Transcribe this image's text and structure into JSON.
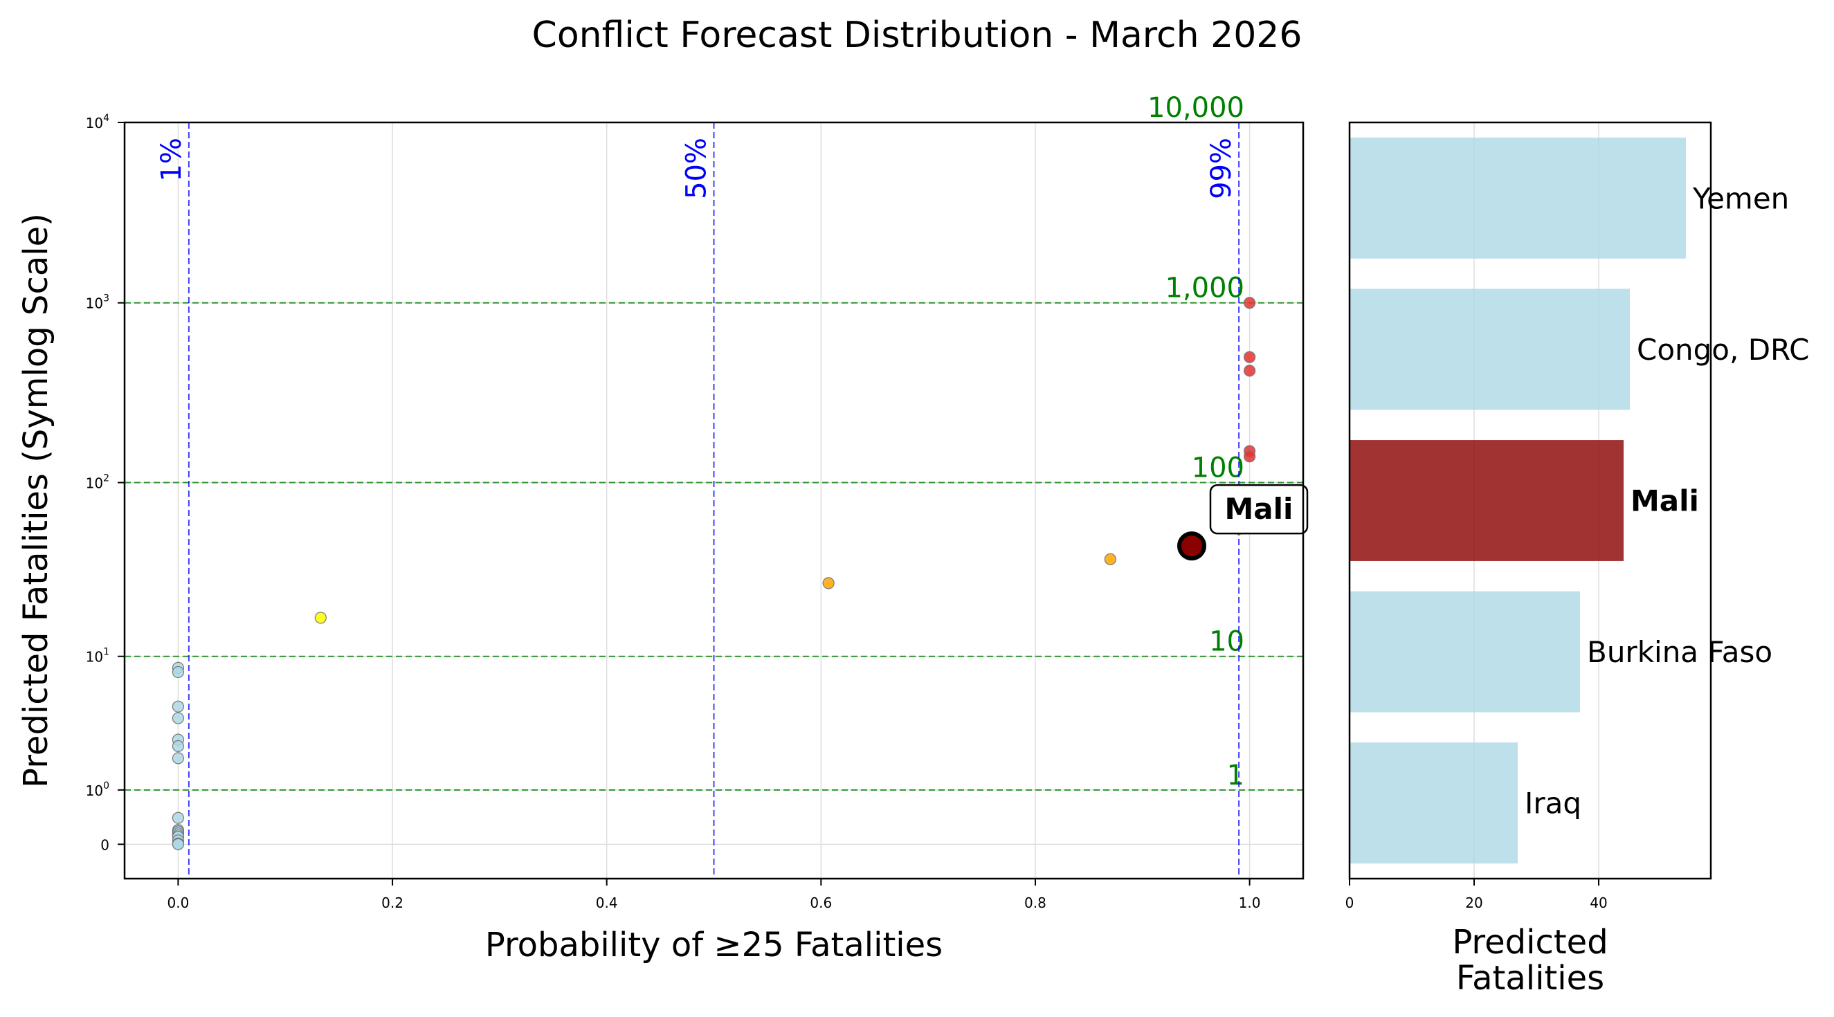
{
  "figure_title": "Conflict Forecast Distribution - March 2026",
  "colors": {
    "probability_line": "#0000ff",
    "fatality_line": "#008000",
    "no_risk_point": "#add8e6",
    "low_risk_point": "#ffff00",
    "medium_risk_point": "#ffa500",
    "high_risk_point": "#e53333",
    "highlight_point": "#8b0000",
    "bar_default": "#add8e6",
    "bar_highlight": "#8b0000",
    "grid": "#dddddd"
  },
  "chart_data": [
    {
      "type": "scatter",
      "title": "",
      "xlabel": "Probability of ≥25 Fatalities",
      "ylabel": "Predicted Fatalities (Symlog Scale)",
      "xlim": [
        -0.05,
        1.05
      ],
      "ylim": [
        -0.55,
        10000
      ],
      "yscale": "symlog",
      "grid": true,
      "x_ticks": [
        {
          "value": 0.0,
          "label": "0.0"
        },
        {
          "value": 0.2,
          "label": "0.2"
        },
        {
          "value": 0.4,
          "label": "0.4"
        },
        {
          "value": 0.6,
          "label": "0.6"
        },
        {
          "value": 0.8,
          "label": "0.8"
        },
        {
          "value": 1.0,
          "label": "1.0"
        }
      ],
      "y_ticks": [
        {
          "value": 0,
          "base": "0",
          "exp": ""
        },
        {
          "value": 1,
          "base": "10",
          "exp": "0"
        },
        {
          "value": 10,
          "base": "10",
          "exp": "1"
        },
        {
          "value": 100,
          "base": "10",
          "exp": "2"
        },
        {
          "value": 1000,
          "base": "10",
          "exp": "3"
        },
        {
          "value": 10000,
          "base": "10",
          "exp": "4"
        }
      ],
      "probability_lines": [
        {
          "x": 0.01,
          "label": "1%"
        },
        {
          "x": 0.5,
          "label": "50%"
        },
        {
          "x": 0.99,
          "label": "99%"
        }
      ],
      "fatality_lines": [
        {
          "y": 1,
          "label": "1"
        },
        {
          "y": 10,
          "label": "10"
        },
        {
          "y": 100,
          "label": "100"
        },
        {
          "y": 1000,
          "label": "1,000"
        },
        {
          "y": 10000,
          "label": "10,000"
        }
      ],
      "points": [
        {
          "x": 0.0,
          "y": 8.5,
          "risk": "no_risk"
        },
        {
          "x": 0.0,
          "y": 8.0,
          "risk": "no_risk"
        },
        {
          "x": 0.0,
          "y": 4.8,
          "risk": "no_risk"
        },
        {
          "x": 0.0,
          "y": 4.0,
          "risk": "no_risk"
        },
        {
          "x": 0.0,
          "y": 2.8,
          "risk": "no_risk"
        },
        {
          "x": 0.0,
          "y": 2.5,
          "risk": "no_risk"
        },
        {
          "x": 0.0,
          "y": 2.0,
          "risk": "no_risk"
        },
        {
          "x": 0.0,
          "y": 0.4,
          "risk": "no_risk"
        },
        {
          "x": 0.0,
          "y": 0.2,
          "risk": "no_risk"
        },
        {
          "x": 0.0,
          "y": 0.18,
          "risk": "no_risk"
        },
        {
          "x": 0.0,
          "y": 0.15,
          "risk": "no_risk"
        },
        {
          "x": 0.0,
          "y": 0.12,
          "risk": "no_risk"
        },
        {
          "x": 0.0,
          "y": 0.1,
          "risk": "no_risk"
        },
        {
          "x": 0.0,
          "y": 0.05,
          "risk": "no_risk"
        },
        {
          "x": 0.0,
          "y": 0.01,
          "risk": "no_risk"
        },
        {
          "x": 0.0,
          "y": 0.0,
          "risk": "no_risk"
        },
        {
          "x": 0.133,
          "y": 17,
          "risk": "low_risk"
        },
        {
          "x": 0.607,
          "y": 27,
          "risk": "medium_risk"
        },
        {
          "x": 0.87,
          "y": 37,
          "risk": "medium_risk"
        },
        {
          "x": 0.99,
          "y": 55,
          "risk": "medium_risk"
        },
        {
          "x": 1.0,
          "y": 1000,
          "risk": "high_risk"
        },
        {
          "x": 1.0,
          "y": 500,
          "risk": "high_risk"
        },
        {
          "x": 1.0,
          "y": 420,
          "risk": "high_risk"
        },
        {
          "x": 1.0,
          "y": 150,
          "risk": "high_risk"
        },
        {
          "x": 1.0,
          "y": 140,
          "risk": "high_risk"
        }
      ],
      "highlight": {
        "x": 0.946,
        "y": 44,
        "label": "Mali"
      }
    },
    {
      "type": "bar",
      "orientation": "horizontal",
      "xlabel": "Predicted\nFatalities",
      "xlim": [
        0,
        58
      ],
      "x_ticks": [
        {
          "value": 0,
          "label": "0"
        },
        {
          "value": 20,
          "label": "20"
        },
        {
          "value": 40,
          "label": "40"
        }
      ],
      "grid": true,
      "categories": [
        "Yemen",
        "Congo, DRC",
        "Mali",
        "Burkina Faso",
        "Iraq"
      ],
      "values": [
        54,
        45,
        44,
        37,
        27
      ],
      "highlight": "Mali"
    }
  ]
}
